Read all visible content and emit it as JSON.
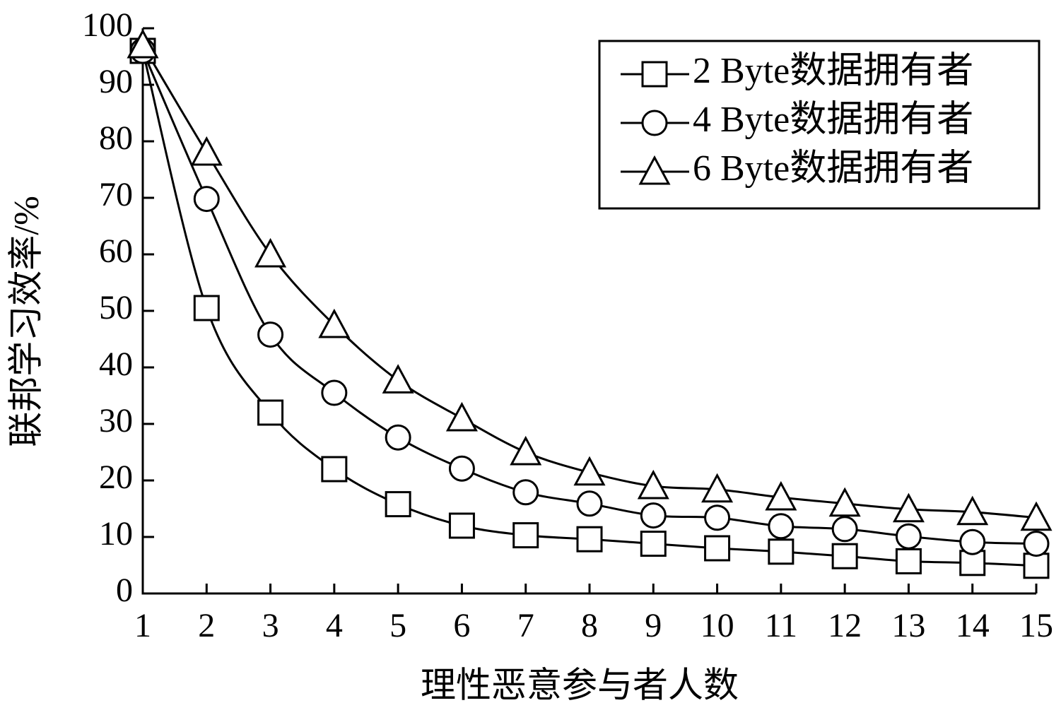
{
  "chart_data": {
    "type": "line",
    "x_label": "理性恶意参与者人数",
    "y_label": "联邦学习效率/%",
    "x": [
      1,
      2,
      3,
      4,
      5,
      6,
      7,
      8,
      9,
      10,
      11,
      12,
      13,
      14,
      15
    ],
    "series": [
      {
        "name": "2 Byte数据拥有者",
        "color": "#000000",
        "marker": "square",
        "values": [
          96,
          50.5,
          32,
          22,
          15.8,
          12,
          10.3,
          9.6,
          8.8,
          8,
          7.4,
          6.6,
          5.7,
          5.4,
          4.9
        ]
      },
      {
        "name": "4 Byte数据拥有者",
        "color": "#000000",
        "marker": "circle",
        "values": [
          96,
          69.8,
          45.8,
          35.5,
          27.6,
          22.1,
          17.9,
          15.9,
          13.8,
          13.4,
          11.9,
          11.4,
          10.1,
          9.1,
          8.8
        ]
      },
      {
        "name": "6 Byte数据拥有者",
        "color": "#000000",
        "marker": "triangle",
        "values": [
          97,
          78,
          60,
          47.5,
          37.7,
          31,
          25,
          21.4,
          19,
          18.4,
          17,
          15.9,
          14.9,
          14.4,
          13.4
        ]
      }
    ],
    "xlim": [
      1,
      15
    ],
    "xticks": [
      1,
      2,
      3,
      4,
      5,
      6,
      7,
      8,
      9,
      10,
      11,
      12,
      13,
      14,
      15
    ],
    "ylim": [
      0,
      100
    ],
    "yticks": [
      0,
      10,
      20,
      30,
      40,
      50,
      60,
      70,
      80,
      90,
      100
    ],
    "grid": false,
    "legend": "upper right"
  }
}
